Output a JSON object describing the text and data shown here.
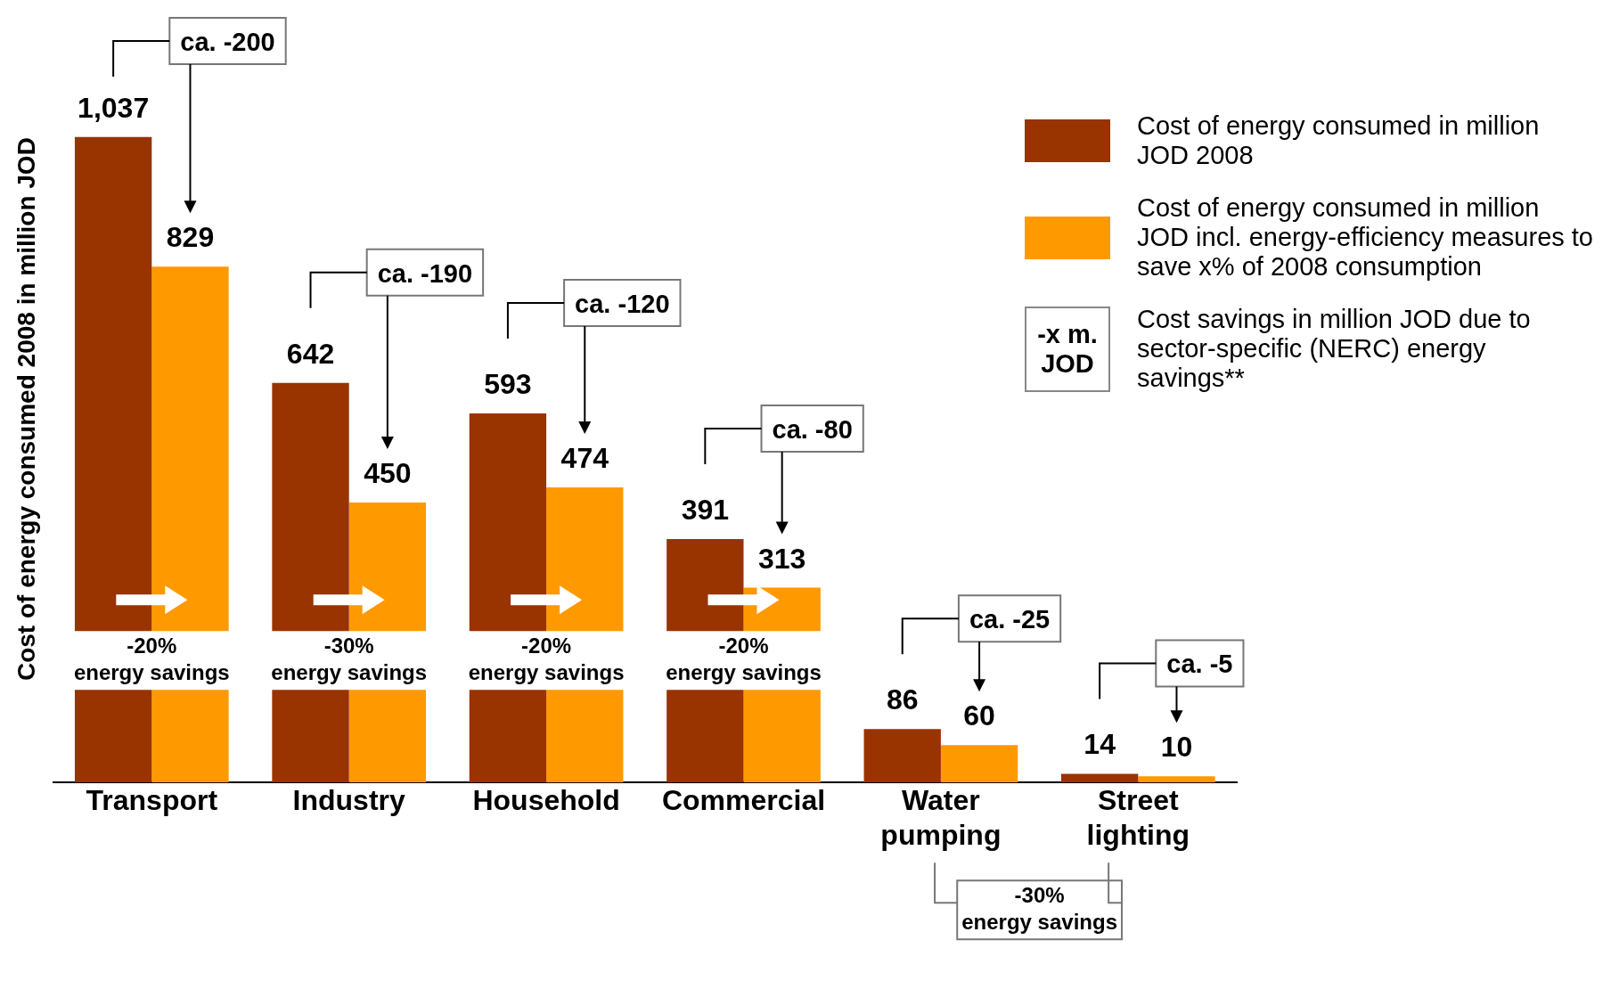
{
  "chart_data": {
    "type": "bar",
    "ylabel": "Cost of energy consumed 2008 in million JOD",
    "categories": [
      "Transport",
      "Industry",
      "Household",
      "Commercial",
      "Water pumping",
      "Street lighting"
    ],
    "series": [
      {
        "name": "Cost of energy consumed in million JOD 2008",
        "color": "#993300",
        "values": [
          1037,
          642,
          593,
          391,
          86,
          14
        ],
        "value_labels": [
          "1,037",
          "642",
          "593",
          "391",
          "86",
          "14"
        ]
      },
      {
        "name": "Cost of energy consumed in million JOD incl. energy-efficiency measures to save x% of 2008 consumption",
        "color": "#ff9900",
        "values": [
          829,
          450,
          474,
          313,
          60,
          10
        ],
        "value_labels": [
          "829",
          "450",
          "474",
          "313",
          "60",
          "10"
        ]
      }
    ],
    "grid": false,
    "legend": "top right",
    "tick_labels": "x",
    "annotations": [
      "ca. -200",
      "ca. -190",
      "ca. -120",
      "ca. -80",
      "ca. -25",
      "ca. -5",
      "-20%\nenergy savings",
      "-30%\nenergy savings",
      "-20%\nenergy savings",
      "-20%\nenergy savings",
      "-30%\nenergy savings",
      "-x m.\nJOD",
      "Cost savings in million JOD due to sector-specific (NERC) energy savings**"
    ]
  }
}
